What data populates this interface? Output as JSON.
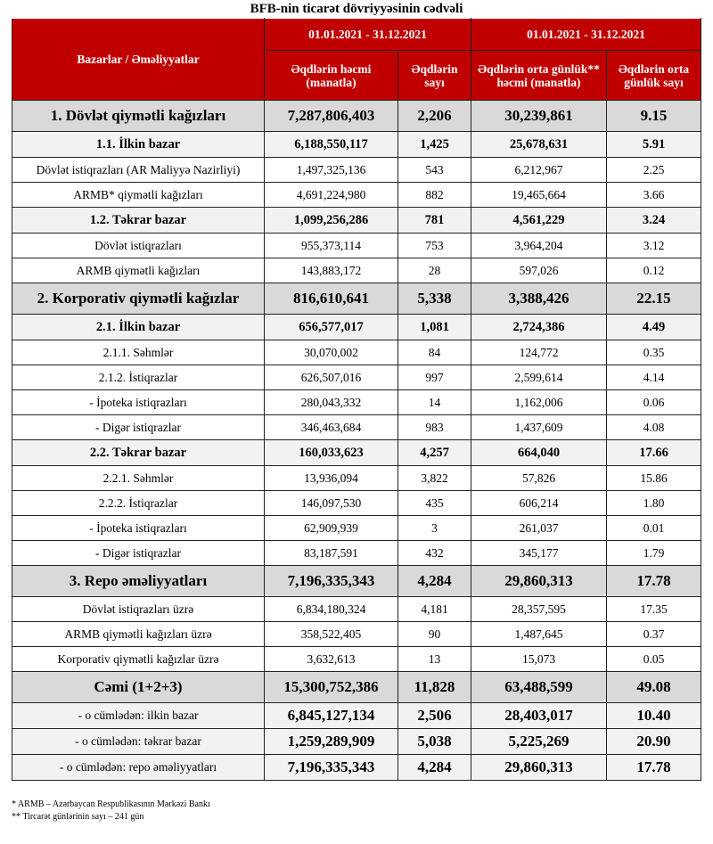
{
  "title": "BFB-nin ticarət dövriyyəsinin cədvəli",
  "header": {
    "col0": "Bazarlar / Əməliyyatlar",
    "period1": "01.01.2021 - 31.12.2021",
    "period2": "01.01.2021 - 31.12.2021",
    "c1": "Əqdlərin həcmi (manatla)",
    "c2": "Əqdlərin sayı",
    "c3": "Əqdlərin orta günlük** həcmi (manatla)",
    "c4": "Əqdlərin orta günlük sayı"
  },
  "rows": [
    {
      "type": "big",
      "label": "1. Dövlət qiymətli kağızları",
      "v": [
        "7,287,806,403",
        "2,206",
        "30,239,861",
        "9.15"
      ]
    },
    {
      "type": "sub",
      "label": "1.1. İlkin bazar",
      "v": [
        "6,188,550,117",
        "1,425",
        "25,678,631",
        "5.91"
      ]
    },
    {
      "type": "norm",
      "label": "Dövlət istiqrazları (AR Maliyyə Nazirliyi)",
      "v": [
        "1,497,325,136",
        "543",
        "6,212,967",
        "2.25"
      ]
    },
    {
      "type": "norm",
      "label": "ARMB* qiymətli kağızları",
      "v": [
        "4,691,224,980",
        "882",
        "19,465,664",
        "3.66"
      ]
    },
    {
      "type": "sub",
      "label": "1.2. Təkrar bazar",
      "v": [
        "1,099,256,286",
        "781",
        "4,561,229",
        "3.24"
      ]
    },
    {
      "type": "norm",
      "label": "Dövlət istiqrazları",
      "v": [
        "955,373,114",
        "753",
        "3,964,204",
        "3.12"
      ]
    },
    {
      "type": "norm",
      "label": "ARMB qiymətli kağızları",
      "v": [
        "143,883,172",
        "28",
        "597,026",
        "0.12"
      ]
    },
    {
      "type": "big",
      "label": "2. Korporativ qiymətli kağızlar",
      "v": [
        "816,610,641",
        "5,338",
        "3,388,426",
        "22.15"
      ]
    },
    {
      "type": "sub",
      "label": "2.1. İlkin bazar",
      "v": [
        "656,577,017",
        "1,081",
        "2,724,386",
        "4.49"
      ]
    },
    {
      "type": "norm",
      "label": "2.1.1. Səhmlər",
      "v": [
        "30,070,002",
        "84",
        "124,772",
        "0.35"
      ]
    },
    {
      "type": "norm",
      "label": "2.1.2. İstiqrazlar",
      "v": [
        "626,507,016",
        "997",
        "2,599,614",
        "4.14"
      ]
    },
    {
      "type": "norm",
      "label": "- İpoteka istiqrazları",
      "v": [
        "280,043,332",
        "14",
        "1,162,006",
        "0.06"
      ]
    },
    {
      "type": "norm",
      "label": "- Digər istiqrazlar",
      "v": [
        "346,463,684",
        "983",
        "1,437,609",
        "4.08"
      ]
    },
    {
      "type": "sub",
      "label": "2.2. Təkrar bazar",
      "v": [
        "160,033,623",
        "4,257",
        "664,040",
        "17.66"
      ]
    },
    {
      "type": "norm",
      "label": "2.2.1. Səhmlər",
      "v": [
        "13,936,094",
        "3,822",
        "57,826",
        "15.86"
      ]
    },
    {
      "type": "norm",
      "label": "2.2.2. İstiqrazlar",
      "v": [
        "146,097,530",
        "435",
        "606,214",
        "1.80"
      ]
    },
    {
      "type": "norm",
      "label": "- İpoteka istiqrazları",
      "v": [
        "62,909,939",
        "3",
        "261,037",
        "0.01"
      ]
    },
    {
      "type": "norm",
      "label": "- Digər istiqrazlar",
      "v": [
        "83,187,591",
        "432",
        "345,177",
        "1.79"
      ]
    },
    {
      "type": "big",
      "label": "3. Repo əməliyyatları",
      "v": [
        "7,196,335,343",
        "4,284",
        "29,860,313",
        "17.78"
      ]
    },
    {
      "type": "norm",
      "label": "Dövlət istiqrazları üzrə",
      "v": [
        "6,834,180,324",
        "4,181",
        "28,357,595",
        "17.35"
      ]
    },
    {
      "type": "norm",
      "label": "ARMB qiymətli kağızları üzrə",
      "v": [
        "358,522,405",
        "90",
        "1,487,645",
        "0.37"
      ]
    },
    {
      "type": "norm",
      "label": "Korporativ qiymətli kağızlar üzrə",
      "v": [
        "3,632,613",
        "13",
        "15,073",
        "0.05"
      ]
    },
    {
      "type": "big",
      "label": "Cəmi (1+2+3)",
      "v": [
        "15,300,752,386",
        "11,828",
        "63,488,599",
        "49.08"
      ]
    },
    {
      "type": "incl",
      "label": "- o cümlədən: ilkin bazar",
      "v": [
        "6,845,127,134",
        "2,506",
        "28,403,017",
        "10.40"
      ]
    },
    {
      "type": "incl",
      "label": "- o cümlədən: təkrar bazar",
      "v": [
        "1,259,289,909",
        "5,038",
        "5,225,269",
        "20.90"
      ]
    },
    {
      "type": "incl",
      "label": "- o cümlədən: repo əməliyyatları",
      "v": [
        "7,196,335,343",
        "4,284",
        "29,860,313",
        "17.78"
      ]
    }
  ],
  "footnotes": [
    "* ARMB – Azərbaycan Respublikasının Mərkəzi Bankı",
    "** Tircarət günlərinin sayı – 241 gün"
  ],
  "colors": {
    "header": "#c00000",
    "total_row": "#d9d9d9",
    "subtotal_row": "#f2f2f2"
  }
}
